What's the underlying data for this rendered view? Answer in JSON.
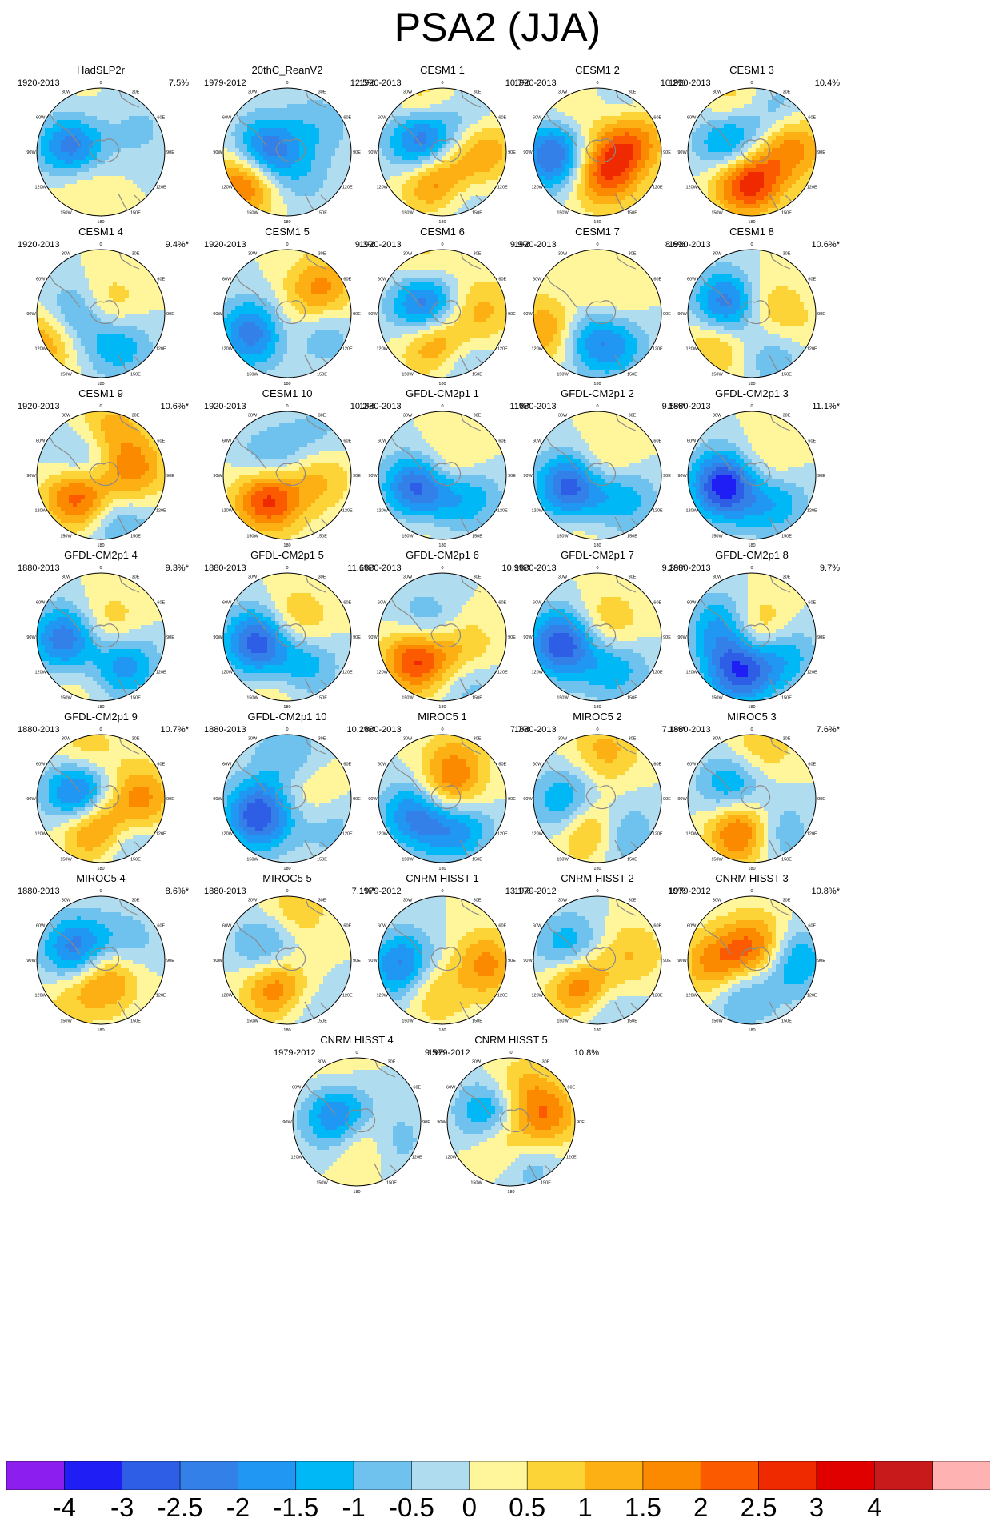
{
  "title": "PSA2 (JJA)",
  "colors": {
    "levels": [
      "#8c1ff0",
      "#1e1ef5",
      "#2e5ee6",
      "#3380e8",
      "#2097f2",
      "#00b8f5",
      "#70c2ee",
      "#b0dcf0",
      "#fff59a",
      "#fdd438",
      "#fdb014",
      "#fc8a00",
      "#fc5a00",
      "#f02a00",
      "#e00000",
      "#c81a1a",
      "#ffb2b2"
    ],
    "coast": "#8a8a8a",
    "outline": "#000000"
  },
  "colorbar": {
    "ticks": [
      "-4",
      "-3",
      "-2.5",
      "-2",
      "-1.5",
      "-1",
      "-0.5",
      "0",
      "0.5",
      "1",
      "1.5",
      "2",
      "2.5",
      "3",
      "4"
    ]
  },
  "map_labels": {
    "lon_top": "0",
    "lon_30w": "30W",
    "lon_30e": "30E",
    "lon_60w": "60W",
    "lon_60e": "60E",
    "lon_90w": "90W",
    "lon_90e": "90E",
    "lon_120w": "120W",
    "lon_120e": "120E",
    "lon_150w": "150W",
    "lon_150e": "150E",
    "lon_bottom": "180"
  },
  "panels": [
    {
      "title": "HadSLP2r",
      "period": "1920-2013",
      "variance": "7.5%"
    },
    {
      "title": "20thC_ReanV2",
      "period": "1979-2012",
      "variance": "12.5%"
    },
    {
      "title": "CESM1 1",
      "period": "1920-2013",
      "variance": "10.7%"
    },
    {
      "title": "CESM1 2",
      "period": "1920-2013",
      "variance": "10.2%"
    },
    {
      "title": "CESM1 3",
      "period": "1920-2013",
      "variance": "10.4%"
    },
    {
      "title": "CESM1 4",
      "period": "1920-2013",
      "variance": "9.4%*"
    },
    {
      "title": "CESM1 5",
      "period": "1920-2013",
      "variance": "9.3%"
    },
    {
      "title": "CESM1 6",
      "period": "1920-2013",
      "variance": "9.9%"
    },
    {
      "title": "CESM1 7",
      "period": "1920-2013",
      "variance": "8.6%"
    },
    {
      "title": "CESM1 8",
      "period": "1920-2013",
      "variance": "10.6%*"
    },
    {
      "title": "CESM1 9",
      "period": "1920-2013",
      "variance": "10.6%*"
    },
    {
      "title": "CESM1 10",
      "period": "1920-2013",
      "variance": "10.2%"
    },
    {
      "title": "GFDL-CM2p1 1",
      "period": "1880-2013",
      "variance": "11%*"
    },
    {
      "title": "GFDL-CM2p1 2",
      "period": "1880-2013",
      "variance": "9.5%*"
    },
    {
      "title": "GFDL-CM2p1 3",
      "period": "1880-2013",
      "variance": "11.1%*"
    },
    {
      "title": "GFDL-CM2p1 4",
      "period": "1880-2013",
      "variance": "9.3%*"
    },
    {
      "title": "GFDL-CM2p1 5",
      "period": "1880-2013",
      "variance": "11.6%*"
    },
    {
      "title": "GFDL-CM2p1 6",
      "period": "1880-2013",
      "variance": "10.9%*"
    },
    {
      "title": "GFDL-CM2p1 7",
      "period": "1880-2013",
      "variance": "9.3%*"
    },
    {
      "title": "GFDL-CM2p1 8",
      "period": "1880-2013",
      "variance": "9.7%"
    },
    {
      "title": "GFDL-CM2p1 9",
      "period": "1880-2013",
      "variance": "10.7%*"
    },
    {
      "title": "GFDL-CM2p1 10",
      "period": "1880-2013",
      "variance": "10.2%*"
    },
    {
      "title": "MIROC5 1",
      "period": "1880-2013",
      "variance": "7.7%"
    },
    {
      "title": "MIROC5 2",
      "period": "1880-2013",
      "variance": "7.1%*"
    },
    {
      "title": "MIROC5 3",
      "period": "1880-2013",
      "variance": "7.6%*"
    },
    {
      "title": "MIROC5 4",
      "period": "1880-2013",
      "variance": "8.6%*"
    },
    {
      "title": "MIROC5 5",
      "period": "1880-2013",
      "variance": "7.1%*"
    },
    {
      "title": "CNRM HISST 1",
      "period": "1979-2012",
      "variance": "13.1%"
    },
    {
      "title": "CNRM HISST 2",
      "period": "1979-2012",
      "variance": "10%"
    },
    {
      "title": "CNRM HISST 3",
      "period": "1979-2012",
      "variance": "10.8%*"
    },
    {
      "title": "CNRM HISST 4",
      "period": "1979-2012",
      "variance": "9.5%"
    },
    {
      "title": "CNRM HISST 5",
      "period": "1979-2012",
      "variance": "10.8%"
    }
  ],
  "chart_data": {
    "type": "heatmap",
    "title": "PSA2 (JJA)",
    "projection": "south-polar stereographic",
    "n_panels": 32,
    "colorbar_levels": [
      -4,
      -3,
      -2.5,
      -2,
      -1.5,
      -1,
      -0.5,
      0,
      0.5,
      1,
      1.5,
      2,
      2.5,
      3,
      4
    ],
    "fields": [
      [
        {
          "lon": -80,
          "r": 0.45,
          "v": -3.0
        },
        {
          "lon": -140,
          "r": 0.5,
          "v": 1.0
        },
        {
          "lon": 60,
          "r": 0.7,
          "v": -0.6
        },
        {
          "lon": -40,
          "r": 0.55,
          "v": 0.6
        }
      ],
      [
        {
          "lon": -95,
          "r": 0.35,
          "v": -3.0
        },
        {
          "lon": -125,
          "r": 0.75,
          "v": 2.8
        },
        {
          "lon": 150,
          "r": 0.5,
          "v": -0.6
        },
        {
          "lon": 50,
          "r": 0.65,
          "v": -0.8
        }
      ],
      [
        {
          "lon": -60,
          "r": 0.35,
          "v": -3.0
        },
        {
          "lon": -170,
          "r": 0.45,
          "v": 2.5
        },
        {
          "lon": 85,
          "r": 0.6,
          "v": 1.8
        },
        {
          "lon": -20,
          "r": 0.75,
          "v": 1.2
        },
        {
          "lon": 160,
          "r": 0.75,
          "v": -1.0
        },
        {
          "lon": 40,
          "r": 0.6,
          "v": -1.0
        }
      ],
      [
        {
          "lon": -95,
          "r": 0.65,
          "v": -2.8
        },
        {
          "lon": 165,
          "r": 0.35,
          "v": 2.4
        },
        {
          "lon": 70,
          "r": 0.55,
          "v": 2.2
        },
        {
          "lon": 30,
          "r": 0.75,
          "v": -0.8
        },
        {
          "lon": -30,
          "r": 0.7,
          "v": 0.6
        }
      ],
      [
        {
          "lon": -65,
          "r": 0.35,
          "v": -2.5
        },
        {
          "lon": -170,
          "r": 0.45,
          "v": 3.2
        },
        {
          "lon": 80,
          "r": 0.6,
          "v": 2.0
        },
        {
          "lon": -20,
          "r": 0.75,
          "v": 1.2
        },
        {
          "lon": 30,
          "r": 0.7,
          "v": -1.2
        }
      ],
      [
        {
          "lon": -100,
          "r": 0.45,
          "v": -2.0
        },
        {
          "lon": -115,
          "r": 0.85,
          "v": 2.0
        },
        {
          "lon": 150,
          "r": 0.55,
          "v": -1.5
        },
        {
          "lon": 50,
          "r": 0.15,
          "v": 1.2
        }
      ],
      [
        {
          "lon": -120,
          "r": 0.6,
          "v": -2.5
        },
        {
          "lon": 55,
          "r": 0.65,
          "v": 1.8
        },
        {
          "lon": 165,
          "r": 0.25,
          "v": 1.0
        },
        {
          "lon": 120,
          "r": 0.55,
          "v": -1.4
        }
      ],
      [
        {
          "lon": -60,
          "r": 0.3,
          "v": -3.0
        },
        {
          "lon": -170,
          "r": 0.45,
          "v": 2.4
        },
        {
          "lon": 85,
          "r": 0.6,
          "v": 1.2
        },
        {
          "lon": -20,
          "r": 0.75,
          "v": 1.0
        },
        {
          "lon": 160,
          "r": 0.75,
          "v": -1.2
        }
      ],
      [
        {
          "lon": -110,
          "r": 0.8,
          "v": 1.8
        },
        {
          "lon": -150,
          "r": 0.4,
          "v": -1.5
        },
        {
          "lon": 150,
          "r": 0.55,
          "v": -1.5
        },
        {
          "lon": 60,
          "r": 0.2,
          "v": 0.8
        }
      ],
      [
        {
          "lon": -70,
          "r": 0.4,
          "v": -2.8
        },
        {
          "lon": -130,
          "r": 0.7,
          "v": 1.4
        },
        {
          "lon": 110,
          "r": 0.6,
          "v": 0.8
        },
        {
          "lon": 150,
          "r": 0.7,
          "v": -1.2
        },
        {
          "lon": 40,
          "r": 0.2,
          "v": 1.0
        }
      ],
      [
        {
          "lon": -130,
          "r": 0.45,
          "v": 3.0
        },
        {
          "lon": -65,
          "r": 0.3,
          "v": -1.8
        },
        {
          "lon": 80,
          "r": 0.5,
          "v": 1.8
        },
        {
          "lon": 10,
          "r": 0.75,
          "v": 1.2
        },
        {
          "lon": 160,
          "r": 0.8,
          "v": -1.2
        }
      ],
      [
        {
          "lon": -140,
          "r": 0.45,
          "v": 3.0
        },
        {
          "lon": -55,
          "r": 0.3,
          "v": -1.5
        },
        {
          "lon": 90,
          "r": 0.5,
          "v": 1.2
        },
        {
          "lon": 40,
          "r": 0.75,
          "v": -0.8
        }
      ],
      [
        {
          "lon": -120,
          "r": 0.45,
          "v": -3.0
        },
        {
          "lon": 50,
          "r": 0.2,
          "v": 1.2
        },
        {
          "lon": 130,
          "r": 0.5,
          "v": -1.6
        },
        {
          "lon": -150,
          "r": 0.8,
          "v": 0.7
        }
      ],
      [
        {
          "lon": -115,
          "r": 0.45,
          "v": -3.0
        },
        {
          "lon": 50,
          "r": 0.2,
          "v": 1.2
        },
        {
          "lon": 130,
          "r": 0.5,
          "v": -1.6
        },
        {
          "lon": -160,
          "r": 0.8,
          "v": 0.6
        }
      ],
      [
        {
          "lon": -110,
          "r": 0.45,
          "v": -3.5
        },
        {
          "lon": 60,
          "r": 0.2,
          "v": 1.0
        },
        {
          "lon": 140,
          "r": 0.55,
          "v": -1.5
        }
      ],
      [
        {
          "lon": -95,
          "r": 0.55,
          "v": -2.6
        },
        {
          "lon": 140,
          "r": 0.55,
          "v": -2.0
        },
        {
          "lon": 40,
          "r": 0.2,
          "v": 1.2
        },
        {
          "lon": -150,
          "r": 0.7,
          "v": 0.6
        }
      ],
      [
        {
          "lon": -100,
          "r": 0.45,
          "v": -3.0
        },
        {
          "lon": 30,
          "r": 0.25,
          "v": 1.4
        },
        {
          "lon": 150,
          "r": 0.5,
          "v": -1.6
        },
        {
          "lon": -170,
          "r": 0.75,
          "v": 0.8
        }
      ],
      [
        {
          "lon": -130,
          "r": 0.5,
          "v": 3.0
        },
        {
          "lon": -60,
          "r": 0.3,
          "v": -1.5
        },
        {
          "lon": 120,
          "r": 0.4,
          "v": 1.2
        },
        {
          "lon": 150,
          "r": 0.8,
          "v": -1.0
        }
      ],
      [
        {
          "lon": -100,
          "r": 0.55,
          "v": -3.0
        },
        {
          "lon": 40,
          "r": 0.25,
          "v": 1.2
        },
        {
          "lon": 150,
          "r": 0.55,
          "v": -1.4
        }
      ],
      [
        {
          "lon": -160,
          "r": 0.55,
          "v": -3.0
        },
        {
          "lon": -70,
          "r": 0.45,
          "v": -2.0
        },
        {
          "lon": 120,
          "r": 0.55,
          "v": -1.5
        },
        {
          "lon": 30,
          "r": 0.1,
          "v": 2.0
        }
      ],
      [
        {
          "lon": -70,
          "r": 0.35,
          "v": -3.0
        },
        {
          "lon": -170,
          "r": 0.45,
          "v": 2.4
        },
        {
          "lon": 90,
          "r": 0.6,
          "v": 1.8
        },
        {
          "lon": -20,
          "r": 0.7,
          "v": 1.2
        },
        {
          "lon": 150,
          "r": 0.75,
          "v": -1.2
        }
      ],
      [
        {
          "lon": -120,
          "r": 0.5,
          "v": -3.0
        },
        {
          "lon": 90,
          "r": 0.4,
          "v": 1.0
        },
        {
          "lon": 0,
          "r": 0.7,
          "v": -1.0
        },
        {
          "lon": 120,
          "r": 0.7,
          "v": -1.0
        }
      ],
      [
        {
          "lon": -120,
          "r": 0.45,
          "v": -2.4
        },
        {
          "lon": 150,
          "r": 0.45,
          "v": -2.4
        },
        {
          "lon": 90,
          "r": 0.1,
          "v": 2.2
        },
        {
          "lon": 20,
          "r": 0.6,
          "v": 1.2
        }
      ],
      [
        {
          "lon": -170,
          "r": 0.45,
          "v": 2.6
        },
        {
          "lon": -100,
          "r": 0.45,
          "v": -2.0
        },
        {
          "lon": 150,
          "r": 0.6,
          "v": -1.8
        },
        {
          "lon": 10,
          "r": 0.75,
          "v": 1.2
        }
      ],
      [
        {
          "lon": -165,
          "r": 0.5,
          "v": 3.0
        },
        {
          "lon": -60,
          "r": 0.35,
          "v": -1.8
        },
        {
          "lon": 150,
          "r": 0.6,
          "v": -1.6
        },
        {
          "lon": 10,
          "r": 0.8,
          "v": 1.0
        }
      ],
      [
        {
          "lon": -70,
          "r": 0.4,
          "v": -2.6
        },
        {
          "lon": 160,
          "r": 0.25,
          "v": 2.0
        },
        {
          "lon": 60,
          "r": 0.45,
          "v": -1.0
        },
        {
          "lon": -140,
          "r": 0.7,
          "v": 0.8
        }
      ],
      [
        {
          "lon": -160,
          "r": 0.45,
          "v": 2.4
        },
        {
          "lon": -60,
          "r": 0.35,
          "v": -1.6
        },
        {
          "lon": 10,
          "r": 0.75,
          "v": 1.0
        },
        {
          "lon": 160,
          "r": 0.75,
          "v": -0.8
        }
      ],
      [
        {
          "lon": -100,
          "r": 0.6,
          "v": -2.4
        },
        {
          "lon": 100,
          "r": 0.6,
          "v": 2.4
        },
        {
          "lon": 130,
          "r": 0.35,
          "v": -1.6
        },
        {
          "lon": -170,
          "r": 0.4,
          "v": 2.0
        }
      ],
      [
        {
          "lon": -145,
          "r": 0.45,
          "v": 2.6
        },
        {
          "lon": -70,
          "r": 0.45,
          "v": -1.8
        },
        {
          "lon": 80,
          "r": 0.55,
          "v": 1.0
        },
        {
          "lon": 170,
          "r": 0.75,
          "v": -1.0
        }
      ],
      [
        {
          "lon": -100,
          "r": 0.55,
          "v": 2.0
        },
        {
          "lon": 30,
          "r": 0.2,
          "v": 2.4
        },
        {
          "lon": 90,
          "r": 0.6,
          "v": -2.0
        },
        {
          "lon": -160,
          "r": 0.5,
          "v": -1.6
        }
      ],
      [
        {
          "lon": -70,
          "r": 0.3,
          "v": -2.6
        },
        {
          "lon": 150,
          "r": 0.3,
          "v": 1.8
        },
        {
          "lon": 120,
          "r": 0.55,
          "v": -1.4
        },
        {
          "lon": -30,
          "r": 0.7,
          "v": 0.6
        }
      ],
      [
        {
          "lon": -70,
          "r": 0.3,
          "v": -2.6
        },
        {
          "lon": -160,
          "r": 0.3,
          "v": 2.2
        },
        {
          "lon": 80,
          "r": 0.55,
          "v": 1.8
        },
        {
          "lon": 10,
          "r": 0.5,
          "v": 1.2
        },
        {
          "lon": 160,
          "r": 0.6,
          "v": -1.4
        }
      ]
    ]
  }
}
